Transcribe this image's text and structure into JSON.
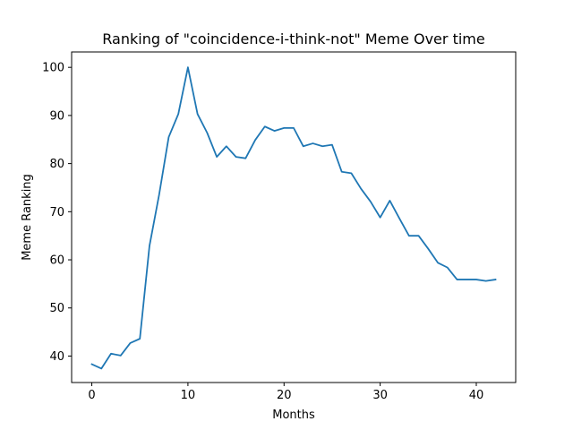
{
  "chart_data": {
    "type": "line",
    "title": "Ranking of \"coincidence-i-think-not\" Meme Over time",
    "xlabel": "Months",
    "ylabel": "Meme Ranking",
    "xlim": [
      -2.1,
      44.1
    ],
    "ylim": [
      34.5,
      103.2
    ],
    "x_ticks": [
      0,
      10,
      20,
      30,
      40
    ],
    "y_ticks": [
      40,
      50,
      60,
      70,
      80,
      90,
      100
    ],
    "grid": false,
    "legend": "none",
    "series": [
      {
        "color": "#1f77b4",
        "x": [
          0,
          1,
          2,
          3,
          4,
          5,
          6,
          7,
          8,
          9,
          10,
          11,
          12,
          13,
          14,
          15,
          16,
          17,
          18,
          19,
          20,
          21,
          22,
          23,
          24,
          25,
          26,
          27,
          28,
          29,
          30,
          31,
          32,
          33,
          34,
          35,
          36,
          37,
          38,
          39,
          40,
          41,
          42
        ],
        "values": [
          38.3,
          37.4,
          40.5,
          40.1,
          42.7,
          43.6,
          62.9,
          73.5,
          85.5,
          90.3,
          100,
          90.3,
          86.4,
          81.4,
          83.6,
          81.4,
          81.1,
          84.9,
          87.7,
          86.8,
          87.4,
          87.4,
          83.6,
          84.2,
          83.6,
          83.9,
          78.3,
          78.0,
          74.8,
          72.1,
          68.8,
          72.3,
          68.6,
          65.0,
          65.0,
          62.3,
          59.4,
          58.4,
          55.9,
          55.9,
          55.9,
          55.6,
          55.9
        ]
      }
    ]
  }
}
